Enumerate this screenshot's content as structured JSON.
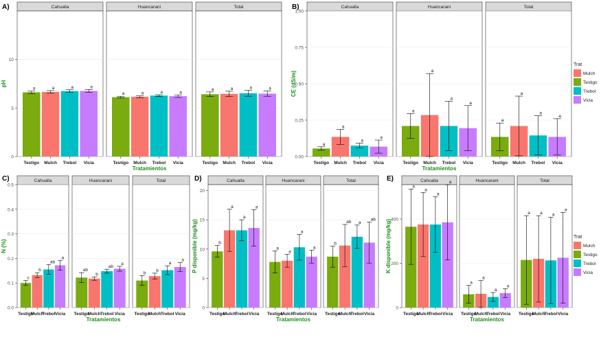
{
  "colors": {
    "Testigo": "#7aab0f",
    "Mulch": "#f8766d",
    "Trebol": "#00bfc4",
    "Vicia": "#c77cff",
    "strip_fill": "#d9d9d9",
    "panel_bg": "#ffffff",
    "grid": "#ebebeb",
    "axis_title": "#1a8f1a"
  },
  "chart_data": [
    {
      "id": "A",
      "panel_label": "A)",
      "type": "bar",
      "ylabel": "pH",
      "xlabel": "Tratamientos",
      "ylim": [
        0,
        15
      ],
      "yticks": [
        0,
        5,
        10
      ],
      "facets": [
        "Cahualla",
        "Huancarani",
        "Total"
      ],
      "categories": [
        "Testigo",
        "Mulch",
        "Trebol",
        "Vicia"
      ],
      "values": [
        [
          6.62,
          6.66,
          6.74,
          6.76
        ],
        [
          6.12,
          6.16,
          6.28,
          6.22
        ],
        [
          6.42,
          6.46,
          6.52,
          6.48
        ]
      ],
      "errors": [
        [
          0.12,
          0.14,
          0.14,
          0.14
        ],
        [
          0.09,
          0.09,
          0.09,
          0.13
        ],
        [
          0.24,
          0.27,
          0.31,
          0.27
        ]
      ],
      "letters": [
        [
          "a",
          "a",
          "a",
          "a"
        ],
        [
          "a",
          "a",
          "a",
          "a"
        ],
        [
          "a",
          "a",
          "a",
          "a"
        ]
      ],
      "legend": false
    },
    {
      "id": "B",
      "panel_label": "B)",
      "type": "bar",
      "ylabel": "CE (dS/m)",
      "xlabel": "Tratamientos",
      "ylim": [
        0,
        1.0
      ],
      "yticks": [
        0.0,
        0.25,
        0.5,
        0.75,
        1.0
      ],
      "ytick_labels": [
        "0.00",
        "0.25",
        "0.50",
        "0.75",
        "1.00"
      ],
      "facets": [
        "Cahualla",
        "Huancarani",
        "Total"
      ],
      "categories": [
        "Testigo",
        "Mulch",
        "Trebol",
        "Vicia"
      ],
      "values": [
        [
          0.055,
          0.135,
          0.075,
          0.068
        ],
        [
          0.21,
          0.285,
          0.21,
          0.195
        ],
        [
          0.135,
          0.21,
          0.145,
          0.135
        ]
      ],
      "errors": [
        [
          0.012,
          0.052,
          0.017,
          0.045
        ],
        [
          0.085,
          0.285,
          0.17,
          0.155
        ],
        [
          0.095,
          0.205,
          0.135,
          0.125
        ]
      ],
      "letters": [
        [
          "a",
          "a",
          "a",
          "a"
        ],
        [
          "a",
          "a",
          "a",
          "a"
        ],
        [
          "a",
          "a",
          "a",
          "a"
        ]
      ],
      "legend": true,
      "legend_title": "Trat",
      "legend_items": [
        "Mulch",
        "Testigo",
        "Trebol",
        "Vicia"
      ]
    },
    {
      "id": "C",
      "panel_label": "C)",
      "type": "bar",
      "ylabel": "N (%)",
      "xlabel": "Tratamientos",
      "ylim": [
        0,
        0.5
      ],
      "yticks": [
        0.0,
        0.1,
        0.2,
        0.3,
        0.4,
        0.5
      ],
      "ytick_labels": [
        "0.0",
        "0.1",
        "0.2",
        "0.3",
        "0.4",
        "0.5"
      ],
      "facets": [
        "Cahualla",
        "Huancarani",
        "Total"
      ],
      "categories": [
        "Testigo",
        "Mulch",
        "Trebol",
        "Vicia"
      ],
      "values": [
        [
          0.1,
          0.132,
          0.155,
          0.172
        ],
        [
          0.122,
          0.118,
          0.148,
          0.158
        ],
        [
          0.11,
          0.128,
          0.152,
          0.165
        ]
      ],
      "errors": [
        [
          0.01,
          0.01,
          0.02,
          0.02
        ],
        [
          0.02,
          0.007,
          0.008,
          0.01
        ],
        [
          0.02,
          0.012,
          0.018,
          0.018
        ]
      ],
      "letters": [
        [
          "c",
          "b",
          "ab",
          "a"
        ],
        [
          "ab",
          "b",
          "ab",
          "a"
        ],
        [
          "b",
          "b",
          "a",
          "a"
        ]
      ],
      "legend": false
    },
    {
      "id": "D",
      "panel_label": "D)",
      "type": "bar",
      "ylabel": "P disponible (mg/kg)",
      "xlabel": "Tratamientos",
      "ylim": [
        0,
        21
      ],
      "yticks": [
        0,
        5,
        10,
        15,
        20
      ],
      "facets": [
        "Cahualla",
        "Huancarani",
        "Total"
      ],
      "categories": [
        "Testigo",
        "Mulch",
        "Trebol",
        "Vicia"
      ],
      "values": [
        [
          9.6,
          13.2,
          13.2,
          13.6
        ],
        [
          7.8,
          8.0,
          10.3,
          8.7
        ],
        [
          8.7,
          10.6,
          12.1,
          11.1
        ]
      ],
      "errors": [
        [
          1.0,
          3.6,
          1.8,
          3.1
        ],
        [
          1.9,
          1.1,
          2.2,
          1.1
        ],
        [
          1.8,
          3.6,
          2.0,
          3.5
        ]
      ],
      "letters": [
        [
          "b",
          "a",
          "a",
          "a"
        ],
        [
          "a",
          "a",
          "a",
          "a"
        ],
        [
          "b",
          "ab",
          "a",
          "ab"
        ]
      ],
      "legend": false
    },
    {
      "id": "E",
      "panel_label": "E)",
      "type": "bar",
      "ylabel": "K disponible (mg/kg)",
      "xlabel": "Tratamientos",
      "ylim": [
        0,
        555
      ],
      "yticks": [
        0,
        200,
        400
      ],
      "facets": [
        "Cahualla",
        "Huancarani",
        "Total"
      ],
      "categories": [
        "Testigo",
        "Mulch",
        "Trebol",
        "Vicia"
      ],
      "values": [
        [
          365,
          375,
          375,
          385
        ],
        [
          60,
          62,
          48,
          65
        ],
        [
          215,
          220,
          213,
          225
        ]
      ],
      "errors": [
        [
          170,
          145,
          125,
          170
        ],
        [
          40,
          60,
          20,
          20
        ],
        [
          200,
          195,
          195,
          205
        ]
      ],
      "letters": [
        [
          "a",
          "a",
          "a",
          "a"
        ],
        [
          "a",
          "a",
          "a",
          "a"
        ],
        [
          "a",
          "a",
          "a",
          "a"
        ]
      ],
      "legend": true,
      "legend_title": "Trat",
      "legend_items": [
        "Mulch",
        "Testigo",
        "Trebol",
        "Vicia"
      ]
    }
  ]
}
